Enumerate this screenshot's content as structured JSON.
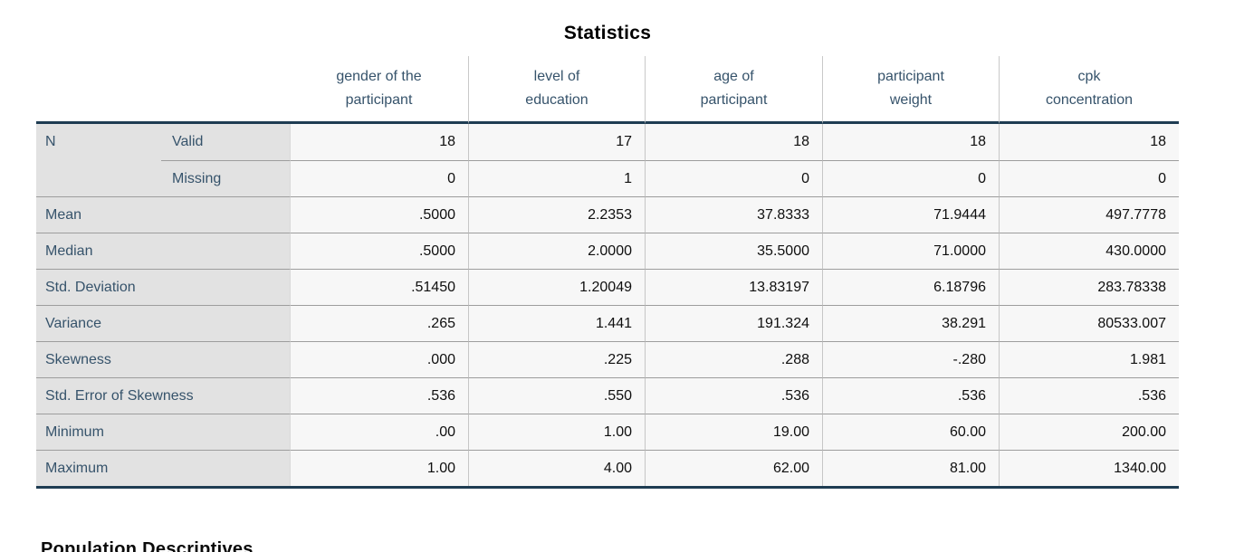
{
  "table": {
    "title": "Statistics",
    "columns": [
      {
        "line1": "gender of the",
        "line2": "participant"
      },
      {
        "line1": "level of",
        "line2": "education"
      },
      {
        "line1": "age of",
        "line2": "participant"
      },
      {
        "line1": "participant",
        "line2": "weight"
      },
      {
        "line1": "cpk",
        "line2": "concentration"
      }
    ],
    "rows": [
      {
        "label": "N",
        "sublabel": "Valid",
        "values": [
          "18",
          "17",
          "18",
          "18",
          "18"
        ]
      },
      {
        "label": "",
        "sublabel": "Missing",
        "values": [
          "0",
          "1",
          "0",
          "0",
          "0"
        ]
      },
      {
        "label": "Mean",
        "values": [
          ".5000",
          "2.2353",
          "37.8333",
          "71.9444",
          "497.7778"
        ]
      },
      {
        "label": "Median",
        "values": [
          ".5000",
          "2.0000",
          "35.5000",
          "71.0000",
          "430.0000"
        ]
      },
      {
        "label": "Std. Deviation",
        "values": [
          ".51450",
          "1.20049",
          "13.83197",
          "6.18796",
          "283.78338"
        ]
      },
      {
        "label": "Variance",
        "values": [
          ".265",
          "1.441",
          "191.324",
          "38.291",
          "80533.007"
        ]
      },
      {
        "label": "Skewness",
        "values": [
          ".000",
          ".225",
          ".288",
          "-.280",
          "1.981"
        ]
      },
      {
        "label": "Std. Error of Skewness",
        "values": [
          ".536",
          ".550",
          ".536",
          ".536",
          ".536"
        ]
      },
      {
        "label": "Minimum",
        "values": [
          ".00",
          "1.00",
          "19.00",
          "60.00",
          "200.00"
        ]
      },
      {
        "label": "Maximum",
        "values": [
          "1.00",
          "4.00",
          "62.00",
          "81.00",
          "1340.00"
        ]
      }
    ]
  },
  "footer_heading": "Population Descriptives",
  "colors": {
    "stub_background": "#e2e2e2",
    "cell_background": "#f7f7f7",
    "label_text": "#36536b",
    "data_text": "#0f0f0f",
    "thick_rule": "#1e3c52",
    "thin_rule": "#9d9d9d"
  }
}
